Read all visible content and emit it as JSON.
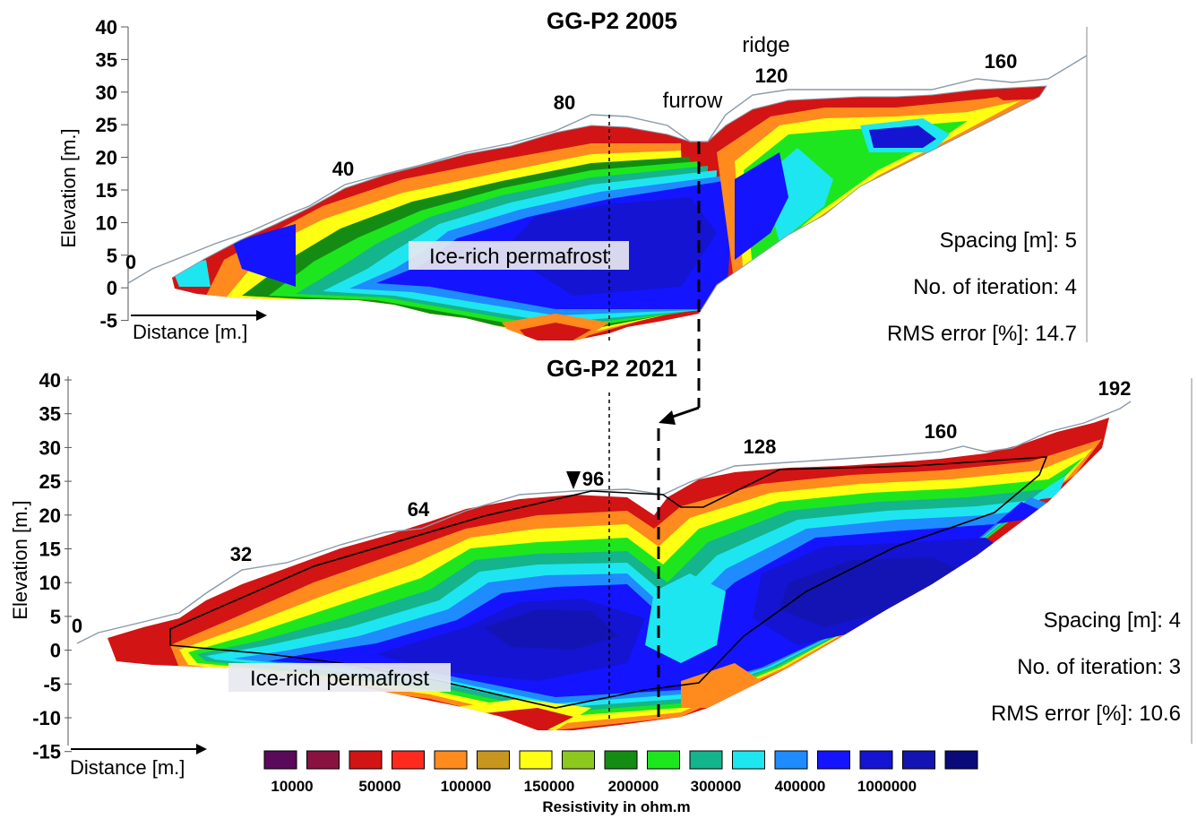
{
  "panel_2005": {
    "title": "GG-P2 2005",
    "ylabel": "Elevation [m.]",
    "yticks": [
      "40",
      "35",
      "30",
      "25",
      "20",
      "15",
      "10",
      "5",
      "0",
      "-5"
    ],
    "distance_ticks": [
      "0",
      "40",
      "80",
      "120",
      "160"
    ],
    "xlabel": "Distance [m.]",
    "ann_ridge": "ridge",
    "ann_furrow": "furrow",
    "ann_ice": "Ice-rich permafrost",
    "spacing": "Spacing [m]: 5",
    "iterations": "No. of iteration: 4",
    "rms": "RMS error [%]: 14.7"
  },
  "panel_2021": {
    "title": "GG-P2 2021",
    "ylabel": "Elevation [m.]",
    "yticks": [
      "40",
      "35",
      "30",
      "25",
      "20",
      "15",
      "10",
      "5",
      "0",
      "-5",
      "-10",
      "-15"
    ],
    "distance_ticks": [
      "0",
      "32",
      "64",
      "96",
      "128",
      "160",
      "192"
    ],
    "xlabel": "Distance [m.]",
    "ann_ice": "Ice-rich permafrost",
    "spacing": "Spacing [m]: 4",
    "iterations": "No. of iteration: 3",
    "rms": "RMS error [%]: 10.6"
  },
  "legend": {
    "title": "Resistivity in ohm.m",
    "labels": [
      "10000",
      "50000",
      "100000",
      "150000",
      "200000",
      "300000",
      "400000",
      "1000000"
    ],
    "colors": [
      "#5a0a5a",
      "#8a1240",
      "#d21414",
      "#ff2a1e",
      "#ff8a1e",
      "#c8961e",
      "#ffff14",
      "#8cc81e",
      "#148c14",
      "#1ee61e",
      "#14b48c",
      "#1ee6f0",
      "#1e8cff",
      "#1414ff",
      "#1414d2",
      "#1414b4",
      "#0a0a78"
    ]
  }
}
